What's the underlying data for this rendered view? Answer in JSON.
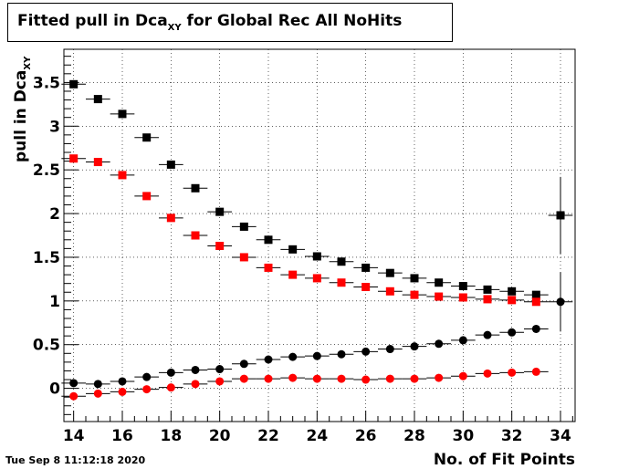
{
  "title": {
    "main": "Fitted pull in Dca",
    "subscript": "XY",
    "suffix": " for Global Rec All NoHits"
  },
  "timestamp": "Tue Sep  8 11:12:18 2020",
  "chart_data": {
    "type": "scatter",
    "title": "Fitted pull in Dca_XY for Global Rec All NoHits",
    "xlabel": "No. of Fit Points",
    "ylabel": "pull in Dca",
    "ylabel_subscript": "XY",
    "xlim": [
      13.6,
      34.6
    ],
    "ylim": [
      -0.38,
      3.88
    ],
    "grid": true,
    "x_ticks": [
      14,
      16,
      18,
      20,
      22,
      24,
      26,
      28,
      30,
      32,
      34
    ],
    "x_tick_labels": [
      "14",
      "16",
      "18",
      "20",
      "22",
      "24",
      "26",
      "28",
      "30",
      "32",
      "34"
    ],
    "y_ticks": [
      0,
      0.5,
      1,
      1.5,
      2,
      2.5,
      3,
      3.5
    ],
    "y_tick_labels": [
      "0",
      "0.5",
      "1",
      "1.5",
      "2",
      "2.5",
      "3",
      "3.5"
    ],
    "series": [
      {
        "color": "#000000",
        "marker": "square",
        "x": [
          14,
          15,
          16,
          17,
          18,
          19,
          20,
          21,
          22,
          23,
          24,
          25,
          26,
          27,
          28,
          29,
          30,
          31,
          32,
          33,
          34
        ],
        "y": [
          3.48,
          3.31,
          3.14,
          2.87,
          2.56,
          2.29,
          2.02,
          1.85,
          1.7,
          1.59,
          1.51,
          1.45,
          1.38,
          1.32,
          1.26,
          1.21,
          1.17,
          1.13,
          1.11,
          1.07,
          1.98
        ],
        "yerr": [
          0,
          0,
          0,
          0,
          0,
          0,
          0,
          0,
          0,
          0,
          0,
          0,
          0,
          0,
          0,
          0,
          0,
          0,
          0,
          0,
          0.44
        ]
      },
      {
        "color": "#ff0000",
        "marker": "square",
        "x": [
          14,
          15,
          16,
          17,
          18,
          19,
          20,
          21,
          22,
          23,
          24,
          25,
          26,
          27,
          28,
          29,
          30,
          31,
          32,
          33
        ],
        "y": [
          2.63,
          2.59,
          2.44,
          2.2,
          1.95,
          1.75,
          1.63,
          1.5,
          1.38,
          1.3,
          1.26,
          1.21,
          1.16,
          1.11,
          1.07,
          1.05,
          1.04,
          1.02,
          1.01,
          0.99
        ],
        "yerr": [
          0,
          0,
          0,
          0,
          0,
          0,
          0,
          0,
          0,
          0,
          0,
          0,
          0,
          0,
          0,
          0,
          0,
          0,
          0,
          0
        ]
      },
      {
        "color": "#000000",
        "marker": "circle",
        "x": [
          14,
          15,
          16,
          17,
          18,
          19,
          20,
          21,
          22,
          23,
          24,
          25,
          26,
          27,
          28,
          29,
          30,
          31,
          32,
          33,
          34
        ],
        "y": [
          0.06,
          0.05,
          0.08,
          0.13,
          0.18,
          0.21,
          0.22,
          0.28,
          0.33,
          0.36,
          0.37,
          0.39,
          0.42,
          0.45,
          0.48,
          0.51,
          0.55,
          0.61,
          0.64,
          0.68,
          0.99
        ],
        "yerr": [
          0,
          0,
          0,
          0,
          0,
          0,
          0,
          0,
          0,
          0,
          0,
          0,
          0,
          0,
          0,
          0,
          0,
          0,
          0,
          0,
          0.34
        ]
      },
      {
        "color": "#ff0000",
        "marker": "circle",
        "x": [
          14,
          15,
          16,
          17,
          18,
          19,
          20,
          21,
          22,
          23,
          24,
          25,
          26,
          27,
          28,
          29,
          30,
          31,
          32,
          33
        ],
        "y": [
          -0.09,
          -0.06,
          -0.04,
          -0.01,
          0.01,
          0.05,
          0.08,
          0.11,
          0.11,
          0.12,
          0.11,
          0.11,
          0.1,
          0.11,
          0.11,
          0.12,
          0.14,
          0.17,
          0.18,
          0.19
        ],
        "yerr": [
          0,
          0,
          0,
          0,
          0,
          0,
          0,
          0,
          0,
          0,
          0,
          0,
          0,
          0,
          0,
          0,
          0,
          0,
          0,
          0
        ]
      }
    ]
  }
}
